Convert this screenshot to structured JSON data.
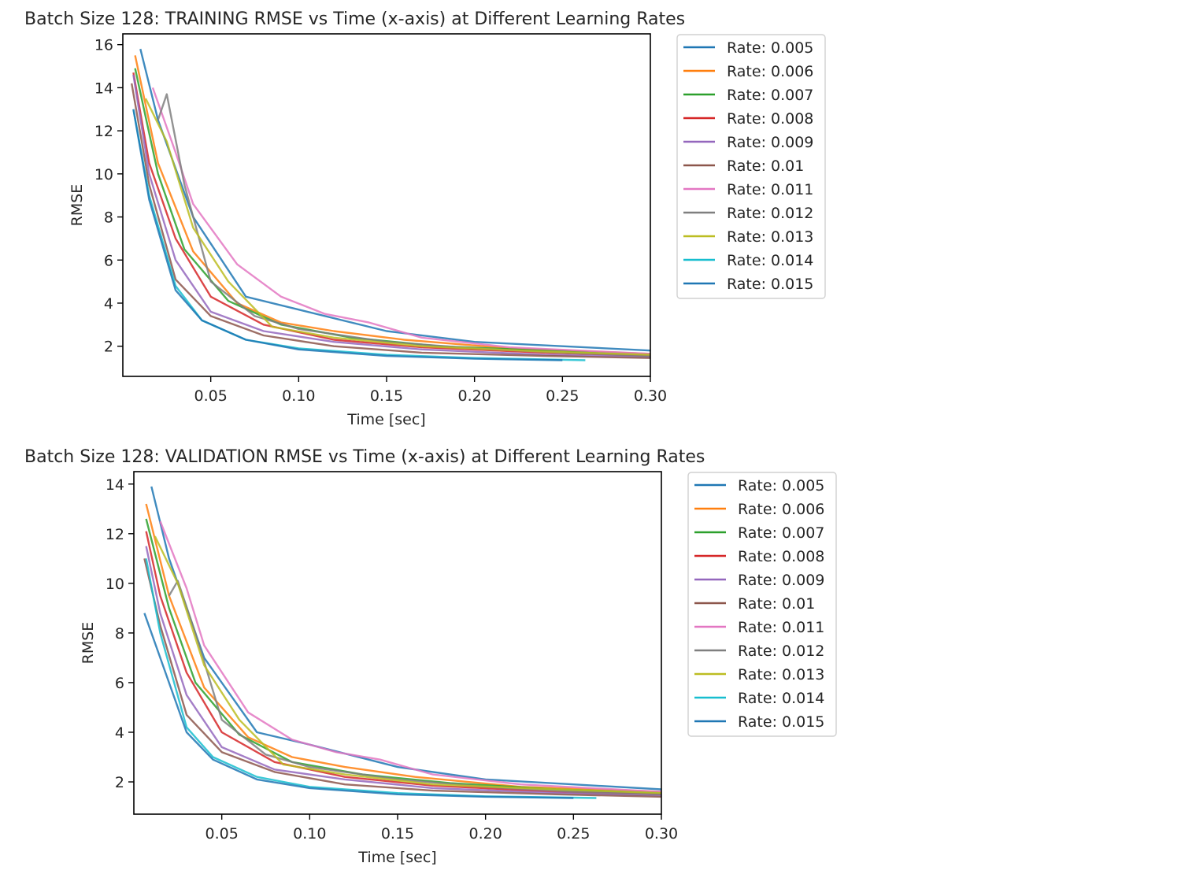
{
  "chart_data": [
    {
      "type": "line",
      "title": "Batch Size 128: TRAINING RMSE vs Time (x-axis) at Different Learning Rates",
      "xlabel": "Time [sec]",
      "ylabel": "RMSE",
      "xlim": [
        0,
        0.3
      ],
      "ylim": [
        0.6,
        16.5
      ],
      "xticks": [
        0.05,
        0.1,
        0.15,
        0.2,
        0.25,
        0.3
      ],
      "yticks": [
        2,
        4,
        6,
        8,
        10,
        12,
        14,
        16
      ],
      "grid": false,
      "legend": "outside-right",
      "series": [
        {
          "name": "Rate: 0.005",
          "color": "#1f77b4",
          "points": [
            [
              0.01,
              15.8
            ],
            [
              0.02,
              12.5
            ],
            [
              0.04,
              8.0
            ],
            [
              0.07,
              4.3
            ],
            [
              0.1,
              3.7
            ],
            [
              0.15,
              2.7
            ],
            [
              0.2,
              2.2
            ],
            [
              0.25,
              2.0
            ],
            [
              0.3,
              1.8
            ]
          ]
        },
        {
          "name": "Rate: 0.006",
          "color": "#ff7f0e",
          "points": [
            [
              0.007,
              15.5
            ],
            [
              0.02,
              10.5
            ],
            [
              0.04,
              6.4
            ],
            [
              0.065,
              4.0
            ],
            [
              0.09,
              3.1
            ],
            [
              0.12,
              2.7
            ],
            [
              0.16,
              2.3
            ],
            [
              0.22,
              1.9
            ],
            [
              0.3,
              1.65
            ]
          ]
        },
        {
          "name": "Rate: 0.007",
          "color": "#2ca02c",
          "points": [
            [
              0.007,
              14.9
            ],
            [
              0.02,
              10.0
            ],
            [
              0.035,
              6.5
            ],
            [
              0.06,
              4.1
            ],
            [
              0.09,
              3.0
            ],
            [
              0.13,
              2.4
            ],
            [
              0.18,
              2.0
            ],
            [
              0.24,
              1.8
            ],
            [
              0.3,
              1.6
            ]
          ]
        },
        {
          "name": "Rate: 0.008",
          "color": "#d62728",
          "points": [
            [
              0.006,
              14.7
            ],
            [
              0.015,
              10.5
            ],
            [
              0.03,
              7.0
            ],
            [
              0.05,
              4.3
            ],
            [
              0.08,
              3.0
            ],
            [
              0.12,
              2.3
            ],
            [
              0.17,
              1.95
            ],
            [
              0.24,
              1.7
            ],
            [
              0.3,
              1.55
            ]
          ]
        },
        {
          "name": "Rate: 0.009",
          "color": "#9467bd",
          "points": [
            [
              0.006,
              14.6
            ],
            [
              0.015,
              10.0
            ],
            [
              0.03,
              6.0
            ],
            [
              0.05,
              3.6
            ],
            [
              0.08,
              2.7
            ],
            [
              0.12,
              2.2
            ],
            [
              0.17,
              1.85
            ],
            [
              0.24,
              1.6
            ],
            [
              0.3,
              1.5
            ]
          ]
        },
        {
          "name": "Rate: 0.01",
          "color": "#8c564b",
          "points": [
            [
              0.005,
              14.2
            ],
            [
              0.015,
              9.5
            ],
            [
              0.03,
              5.1
            ],
            [
              0.05,
              3.4
            ],
            [
              0.08,
              2.5
            ],
            [
              0.12,
              2.0
            ],
            [
              0.17,
              1.7
            ],
            [
              0.24,
              1.55
            ],
            [
              0.3,
              1.45
            ]
          ]
        },
        {
          "name": "Rate: 0.011",
          "color": "#e377c2",
          "points": [
            [
              0.017,
              14.0
            ],
            [
              0.03,
              11.0
            ],
            [
              0.04,
              8.6
            ],
            [
              0.065,
              5.8
            ],
            [
              0.09,
              4.3
            ],
            [
              0.115,
              3.5
            ],
            [
              0.14,
              3.1
            ],
            [
              0.17,
              2.4
            ],
            [
              0.22,
              1.95
            ],
            [
              0.3,
              1.65
            ]
          ]
        },
        {
          "name": "Rate: 0.012",
          "color": "#7f7f7f",
          "points": [
            [
              0.02,
              12.5
            ],
            [
              0.025,
              13.7
            ],
            [
              0.035,
              9.5
            ],
            [
              0.05,
              5.0
            ],
            [
              0.075,
              3.4
            ],
            [
              0.1,
              2.8
            ],
            [
              0.15,
              2.2
            ],
            [
              0.2,
              1.9
            ],
            [
              0.25,
              1.7
            ],
            [
              0.3,
              1.55
            ]
          ]
        },
        {
          "name": "Rate: 0.013",
          "color": "#bcbd22",
          "points": [
            [
              0.013,
              13.5
            ],
            [
              0.025,
              11.5
            ],
            [
              0.04,
              7.5
            ],
            [
              0.06,
              5.0
            ],
            [
              0.085,
              2.9
            ],
            [
              0.12,
              2.4
            ],
            [
              0.17,
              2.0
            ],
            [
              0.24,
              1.75
            ],
            [
              0.3,
              1.6
            ]
          ]
        },
        {
          "name": "Rate: 0.014",
          "color": "#17becf",
          "points": [
            [
              0.006,
              13.0
            ],
            [
              0.015,
              9.0
            ],
            [
              0.03,
              4.8
            ],
            [
              0.045,
              3.2
            ],
            [
              0.07,
              2.3
            ],
            [
              0.1,
              1.9
            ],
            [
              0.15,
              1.6
            ],
            [
              0.2,
              1.45
            ],
            [
              0.263,
              1.35
            ]
          ]
        },
        {
          "name": "Rate: 0.015",
          "color": "#1f77b4",
          "points": [
            [
              0.006,
              13.0
            ],
            [
              0.015,
              8.8
            ],
            [
              0.03,
              4.6
            ],
            [
              0.045,
              3.2
            ],
            [
              0.07,
              2.3
            ],
            [
              0.1,
              1.85
            ],
            [
              0.15,
              1.55
            ],
            [
              0.2,
              1.42
            ],
            [
              0.25,
              1.35
            ]
          ]
        }
      ]
    },
    {
      "type": "line",
      "title": "Batch Size 128: VALIDATION RMSE vs Time (x-axis) at Different Learning Rates",
      "xlabel": "Time [sec]",
      "ylabel": "RMSE",
      "xlim": [
        0,
        0.3
      ],
      "ylim": [
        0.7,
        14.5
      ],
      "xticks": [
        0.05,
        0.1,
        0.15,
        0.2,
        0.25,
        0.3
      ],
      "yticks": [
        2,
        4,
        6,
        8,
        10,
        12,
        14
      ],
      "grid": false,
      "legend": "outside-right",
      "series": [
        {
          "name": "Rate: 0.005",
          "color": "#1f77b4",
          "points": [
            [
              0.01,
              13.9
            ],
            [
              0.02,
              11.0
            ],
            [
              0.04,
              7.0
            ],
            [
              0.07,
              4.0
            ],
            [
              0.1,
              3.5
            ],
            [
              0.15,
              2.6
            ],
            [
              0.2,
              2.1
            ],
            [
              0.25,
              1.9
            ],
            [
              0.3,
              1.7
            ]
          ]
        },
        {
          "name": "Rate: 0.006",
          "color": "#ff7f0e",
          "points": [
            [
              0.007,
              13.2
            ],
            [
              0.02,
              9.5
            ],
            [
              0.04,
              5.8
            ],
            [
              0.065,
              3.8
            ],
            [
              0.09,
              3.0
            ],
            [
              0.12,
              2.6
            ],
            [
              0.16,
              2.2
            ],
            [
              0.22,
              1.8
            ],
            [
              0.3,
              1.6
            ]
          ]
        },
        {
          "name": "Rate: 0.007",
          "color": "#2ca02c",
          "points": [
            [
              0.007,
              12.6
            ],
            [
              0.02,
              9.0
            ],
            [
              0.035,
              6.0
            ],
            [
              0.06,
              3.9
            ],
            [
              0.09,
              2.8
            ],
            [
              0.13,
              2.3
            ],
            [
              0.18,
              1.95
            ],
            [
              0.24,
              1.7
            ],
            [
              0.3,
              1.55
            ]
          ]
        },
        {
          "name": "Rate: 0.008",
          "color": "#d62728",
          "points": [
            [
              0.007,
              12.1
            ],
            [
              0.015,
              9.5
            ],
            [
              0.03,
              6.4
            ],
            [
              0.05,
              4.0
            ],
            [
              0.08,
              2.8
            ],
            [
              0.12,
              2.2
            ],
            [
              0.17,
              1.85
            ],
            [
              0.24,
              1.6
            ],
            [
              0.3,
              1.5
            ]
          ]
        },
        {
          "name": "Rate: 0.009",
          "color": "#9467bd",
          "points": [
            [
              0.007,
              11.5
            ],
            [
              0.015,
              8.8
            ],
            [
              0.03,
              5.5
            ],
            [
              0.05,
              3.4
            ],
            [
              0.08,
              2.5
            ],
            [
              0.12,
              2.1
            ],
            [
              0.17,
              1.75
            ],
            [
              0.24,
              1.55
            ],
            [
              0.3,
              1.45
            ]
          ]
        },
        {
          "name": "Rate: 0.01",
          "color": "#8c564b",
          "points": [
            [
              0.006,
              11.0
            ],
            [
              0.015,
              8.3
            ],
            [
              0.03,
              4.7
            ],
            [
              0.05,
              3.2
            ],
            [
              0.08,
              2.4
            ],
            [
              0.12,
              1.9
            ],
            [
              0.17,
              1.65
            ],
            [
              0.24,
              1.5
            ],
            [
              0.3,
              1.4
            ]
          ]
        },
        {
          "name": "Rate: 0.011",
          "color": "#e377c2",
          "points": [
            [
              0.015,
              12.5
            ],
            [
              0.03,
              9.8
            ],
            [
              0.04,
              7.5
            ],
            [
              0.065,
              4.8
            ],
            [
              0.09,
              3.7
            ],
            [
              0.115,
              3.2
            ],
            [
              0.14,
              2.9
            ],
            [
              0.17,
              2.3
            ],
            [
              0.22,
              1.9
            ],
            [
              0.3,
              1.6
            ]
          ]
        },
        {
          "name": "Rate: 0.012",
          "color": "#7f7f7f",
          "points": [
            [
              0.02,
              9.5
            ],
            [
              0.025,
              10.1
            ],
            [
              0.035,
              8.0
            ],
            [
              0.05,
              4.5
            ],
            [
              0.075,
              3.1
            ],
            [
              0.1,
              2.6
            ],
            [
              0.15,
              2.1
            ],
            [
              0.2,
              1.8
            ],
            [
              0.25,
              1.6
            ],
            [
              0.3,
              1.5
            ]
          ]
        },
        {
          "name": "Rate: 0.013",
          "color": "#bcbd22",
          "points": [
            [
              0.012,
              11.9
            ],
            [
              0.025,
              10.0
            ],
            [
              0.04,
              6.7
            ],
            [
              0.06,
              4.5
            ],
            [
              0.085,
              2.7
            ],
            [
              0.12,
              2.3
            ],
            [
              0.17,
              1.9
            ],
            [
              0.24,
              1.7
            ],
            [
              0.3,
              1.55
            ]
          ]
        },
        {
          "name": "Rate: 0.014",
          "color": "#17becf",
          "points": [
            [
              0.007,
              11.0
            ],
            [
              0.015,
              8.0
            ],
            [
              0.03,
              4.2
            ],
            [
              0.045,
              3.0
            ],
            [
              0.07,
              2.2
            ],
            [
              0.1,
              1.8
            ],
            [
              0.15,
              1.55
            ],
            [
              0.2,
              1.42
            ],
            [
              0.263,
              1.35
            ]
          ]
        },
        {
          "name": "Rate: 0.015",
          "color": "#1f77b4",
          "points": [
            [
              0.006,
              8.8
            ],
            [
              0.015,
              7.0
            ],
            [
              0.03,
              4.0
            ],
            [
              0.045,
              2.9
            ],
            [
              0.07,
              2.1
            ],
            [
              0.1,
              1.75
            ],
            [
              0.15,
              1.5
            ],
            [
              0.2,
              1.4
            ],
            [
              0.25,
              1.35
            ]
          ]
        }
      ]
    }
  ]
}
